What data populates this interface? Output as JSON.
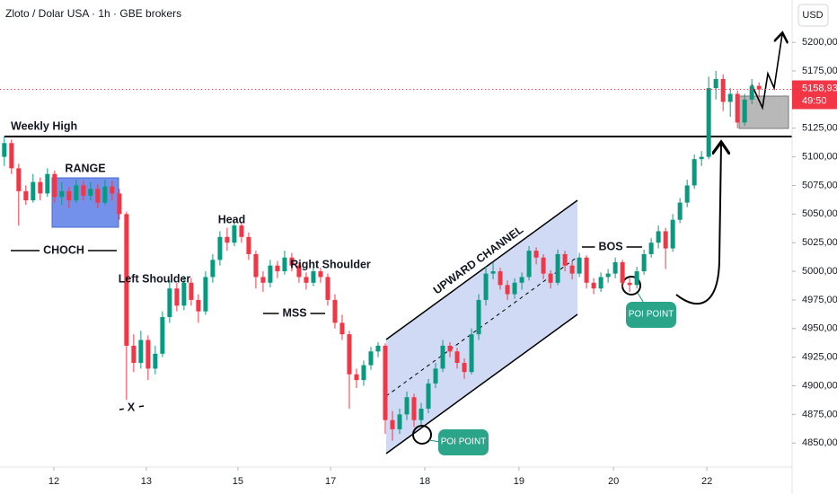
{
  "chart_data": {
    "type": "candlestick",
    "title": "Zloto / Dolar USA · 1h · GBE brokers",
    "currency": "USD",
    "up_color": "#089981",
    "down_color": "#f23645",
    "ohlc": [
      [
        5100,
        5118,
        5092,
        5112
      ],
      [
        5112,
        5115,
        5085,
        5090
      ],
      [
        5090,
        5094,
        5040,
        5070
      ],
      [
        5070,
        5075,
        5058,
        5062
      ],
      [
        5062,
        5085,
        5060,
        5078
      ],
      [
        5078,
        5082,
        5062,
        5068
      ],
      [
        5068,
        5090,
        5065,
        5085
      ],
      [
        5085,
        5088,
        5060,
        5065
      ],
      [
        5065,
        5078,
        5058,
        5070
      ],
      [
        5070,
        5074,
        5055,
        5062
      ],
      [
        5062,
        5080,
        5060,
        5075
      ],
      [
        5075,
        5079,
        5062,
        5066
      ],
      [
        5066,
        5078,
        5062,
        5072
      ],
      [
        5072,
        5076,
        5055,
        5060
      ],
      [
        5060,
        5080,
        5058,
        5074
      ],
      [
        5074,
        5079,
        5062,
        5068
      ],
      [
        5068,
        5072,
        5045,
        5050
      ],
      [
        5050,
        5052,
        4880,
        4935
      ],
      [
        4935,
        4945,
        4912,
        4920
      ],
      [
        4920,
        4948,
        4915,
        4940
      ],
      [
        4940,
        4944,
        4905,
        4915
      ],
      [
        4915,
        4935,
        4910,
        4928
      ],
      [
        4928,
        4965,
        4925,
        4960
      ],
      [
        4960,
        4992,
        4955,
        4985
      ],
      [
        4985,
        4990,
        4965,
        4970
      ],
      [
        4970,
        4996,
        4966,
        4990
      ],
      [
        4990,
        4994,
        4970,
        4975
      ],
      [
        4975,
        4980,
        4955,
        4965
      ],
      [
        4965,
        5000,
        4962,
        4995
      ],
      [
        4995,
        5015,
        4990,
        5010
      ],
      [
        5010,
        5035,
        5005,
        5030
      ],
      [
        5030,
        5038,
        5018,
        5025
      ],
      [
        5025,
        5045,
        5022,
        5040
      ],
      [
        5040,
        5043,
        5025,
        5030
      ],
      [
        5030,
        5034,
        5010,
        5015
      ],
      [
        5015,
        5018,
        4985,
        4995
      ],
      [
        4995,
        5000,
        4982,
        4990
      ],
      [
        4990,
        5010,
        4986,
        5005
      ],
      [
        5005,
        5009,
        4994,
        5000
      ],
      [
        5000,
        5018,
        4997,
        5012
      ],
      [
        5012,
        5016,
        5000,
        5005
      ],
      [
        5005,
        5008,
        4990,
        4995
      ],
      [
        4995,
        4999,
        4984,
        4990
      ],
      [
        4990,
        5004,
        4987,
        5000
      ],
      [
        5000,
        5003,
        4990,
        4995
      ],
      [
        4995,
        4998,
        4970,
        4975
      ],
      [
        4975,
        4980,
        4950,
        4955
      ],
      [
        4955,
        4962,
        4940,
        4945
      ],
      [
        4945,
        4948,
        4880,
        4910
      ],
      [
        4910,
        4915,
        4898,
        4905
      ],
      [
        4905,
        4922,
        4900,
        4918
      ],
      [
        4918,
        4934,
        4914,
        4930
      ],
      [
        4930,
        4938,
        4925,
        4935
      ],
      [
        4935,
        4937,
        4858,
        4870
      ],
      [
        4870,
        4878,
        4852,
        4862
      ],
      [
        4862,
        4880,
        4858,
        4875
      ],
      [
        4875,
        4895,
        4870,
        4890
      ],
      [
        4890,
        4893,
        4864,
        4870
      ],
      [
        4870,
        4885,
        4866,
        4880
      ],
      [
        4880,
        4906,
        4876,
        4902
      ],
      [
        4902,
        4920,
        4898,
        4915
      ],
      [
        4915,
        4940,
        4912,
        4935
      ],
      [
        4935,
        4938,
        4925,
        4930
      ],
      [
        4930,
        4933,
        4915,
        4920
      ],
      [
        4920,
        4924,
        4906,
        4912
      ],
      [
        4912,
        4950,
        4910,
        4945
      ],
      [
        4945,
        4980,
        4940,
        4975
      ],
      [
        4975,
        5004,
        4970,
        4998
      ],
      [
        4998,
        5008,
        4993,
        5000
      ],
      [
        5000,
        5003,
        4984,
        4988
      ],
      [
        4988,
        4992,
        4975,
        4980
      ],
      [
        4980,
        4994,
        4976,
        4990
      ],
      [
        4990,
        4999,
        4984,
        4995
      ],
      [
        4995,
        5022,
        4992,
        5018
      ],
      [
        5018,
        5021,
        5006,
        5012
      ],
      [
        5012,
        5015,
        4993,
        4998
      ],
      [
        4998,
        5001,
        4985,
        4990
      ],
      [
        4990,
        5019,
        4988,
        5015
      ],
      [
        5015,
        5018,
        5000,
        5005
      ],
      [
        5005,
        5009,
        4993,
        4998
      ],
      [
        4998,
        5016,
        4995,
        5012
      ],
      [
        5012,
        5014,
        4985,
        4990
      ],
      [
        4990,
        4994,
        4980,
        4985
      ],
      [
        4985,
        4999,
        4982,
        4995
      ],
      [
        4995,
        5002,
        4990,
        4998
      ],
      [
        4998,
        5012,
        4994,
        5008
      ],
      [
        5008,
        5010,
        4986,
        4990
      ],
      [
        4990,
        4994,
        4982,
        4988
      ],
      [
        4988,
        5004,
        4985,
        5000
      ],
      [
        5000,
        5019,
        4997,
        5015
      ],
      [
        5015,
        5029,
        5012,
        5025
      ],
      [
        5025,
        5040,
        5020,
        5035
      ],
      [
        5035,
        5038,
        5002,
        5020
      ],
      [
        5020,
        5050,
        5017,
        5045
      ],
      [
        5045,
        5064,
        5042,
        5060
      ],
      [
        5060,
        5080,
        5056,
        5075
      ],
      [
        5075,
        5102,
        5072,
        5098
      ],
      [
        5098,
        5105,
        5092,
        5100
      ],
      [
        5100,
        5170,
        5098,
        5160
      ],
      [
        5160,
        5175,
        5150,
        5168
      ],
      [
        5168,
        5172,
        5140,
        5148
      ],
      [
        5148,
        5160,
        5135,
        5155
      ],
      [
        5155,
        5158,
        5125,
        5130
      ],
      [
        5130,
        5155,
        5127,
        5150
      ],
      [
        5150,
        5168,
        5146,
        5162
      ],
      [
        5162,
        5165,
        5152,
        5158.93
      ]
    ],
    "xlim": [
      -0.6,
      109.6
    ],
    "xticks": [
      {
        "value": 6.9,
        "label": "12"
      },
      {
        "value": 19.75,
        "label": "13"
      },
      {
        "value": 32.5,
        "label": "15"
      },
      {
        "value": 45.4,
        "label": "17"
      },
      {
        "value": 58.5,
        "label": "18"
      },
      {
        "value": 71.6,
        "label": "19"
      },
      {
        "value": 84.75,
        "label": "20"
      },
      {
        "value": 97.75,
        "label": "22"
      }
    ],
    "ylim": [
      4829,
      5237
    ],
    "yticks": [
      {
        "value": 4850,
        "label": "4850,00"
      },
      {
        "value": 4875,
        "label": "4875,00"
      },
      {
        "value": 4900,
        "label": "4900,00"
      },
      {
        "value": 4925,
        "label": "4925,00"
      },
      {
        "value": 4950,
        "label": "4950,00"
      },
      {
        "value": 4975,
        "label": "4975,00"
      },
      {
        "value": 5000,
        "label": "5000,00"
      },
      {
        "value": 5025,
        "label": "5025,00"
      },
      {
        "value": 5050,
        "label": "5050,00"
      },
      {
        "value": 5075,
        "label": "5075,00"
      },
      {
        "value": 5100,
        "label": "5100,00"
      },
      {
        "value": 5125,
        "label": "5125,00"
      },
      {
        "value": 5150,
        "label": "5150,00"
      },
      {
        "value": 5175,
        "label": "5175,00"
      },
      {
        "value": 5200,
        "label": "5200,00"
      }
    ],
    "last_price": {
      "value": 5158.93,
      "label": "5158,93"
    },
    "countdown": "49:50",
    "annotations": [
      "Weekly High",
      "RANGE",
      "CHOCH",
      "Left Shoulder",
      "Head",
      "Right Shoulder",
      "MSS",
      "X",
      "UPWARD CHANNEL",
      "POI POINT",
      "POI POINT",
      "BOS"
    ]
  }
}
